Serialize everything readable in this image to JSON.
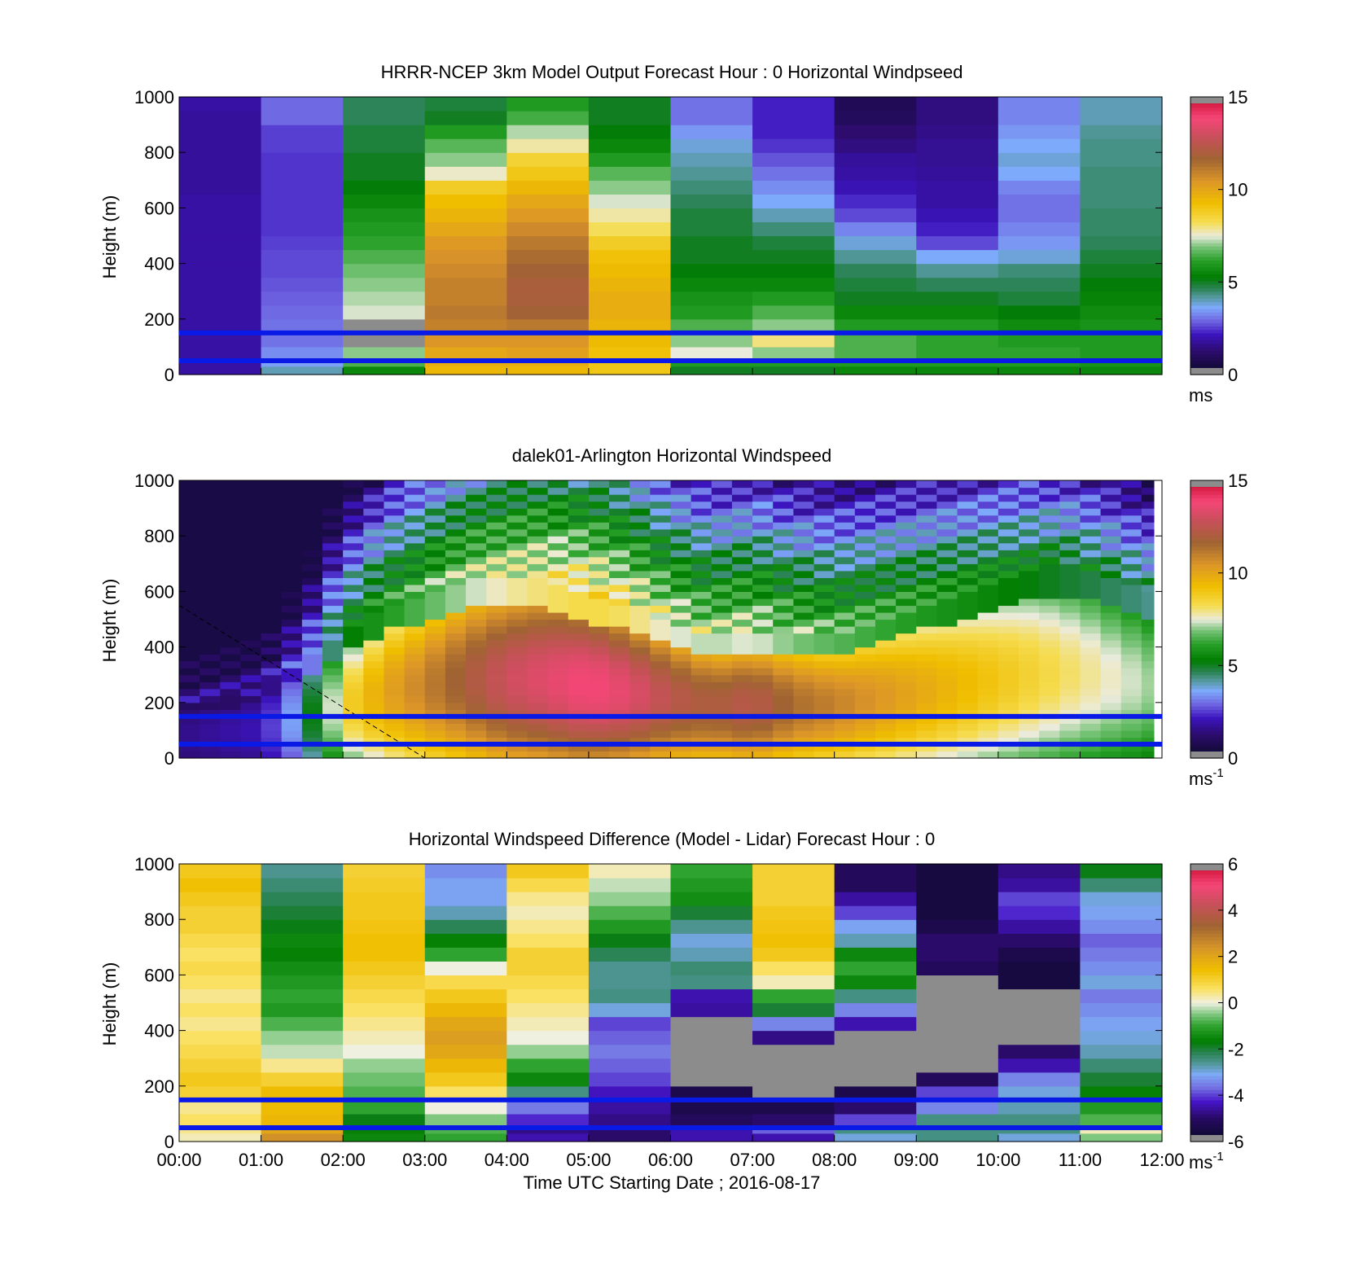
{
  "panels": [
    {
      "title": "HRRR-NCEP 3km Model Output   Forecast Hour : 0 Horizontal Windpseed",
      "ylabel": "Height (m)",
      "yticks": [
        "0",
        "200",
        "400",
        "600",
        "800",
        "1000"
      ],
      "cbar_ticks": [
        "0",
        "5",
        "10",
        "15"
      ],
      "cbar_unit": "ms",
      "cbar_exp": ""
    },
    {
      "title": "dalek01-Arlington  Horizontal Windspeed",
      "ylabel": "Height (m)",
      "yticks": [
        "0",
        "200",
        "400",
        "600",
        "800",
        "1000"
      ],
      "cbar_ticks": [
        "0",
        "5",
        "10",
        "15"
      ],
      "cbar_unit": "ms",
      "cbar_exp": "-1"
    },
    {
      "title": "Horizontal Windspeed Difference (Model - Lidar) Forecast Hour : 0",
      "ylabel": "Height (m)",
      "yticks": [
        "0",
        "200",
        "400",
        "600",
        "800",
        "1000"
      ],
      "cbar_ticks": [
        "-6",
        "-4",
        "-2",
        "0",
        "2",
        "4",
        "6"
      ],
      "cbar_unit": "ms",
      "cbar_exp": "-1"
    }
  ],
  "xlabel": "Time UTC  Starting Date ; 2016-08-17",
  "xticks": [
    "00:00",
    "01:00",
    "02:00",
    "03:00",
    "04:00",
    "05:00",
    "06:00",
    "07:00",
    "08:00",
    "09:00",
    "10:00",
    "11:00",
    "12:00"
  ],
  "colors": {
    "line": "#0a1ae6",
    "nodata": "#8c8c8c"
  },
  "chart_data": [
    {
      "type": "heatmap",
      "title": "HRRR-NCEP 3km Model Output   Forecast Hour : 0 Horizontal Windpseed",
      "xlabel": "",
      "ylabel": "Height (m)",
      "xlim_hours": [
        0,
        12
      ],
      "ylim": [
        0,
        1000
      ],
      "clim": [
        0,
        15
      ],
      "colorbar_label": "ms",
      "x_hours": [
        0,
        1,
        2,
        3,
        4,
        5,
        6,
        7,
        8,
        9,
        10,
        11
      ],
      "heights": [
        30,
        60,
        100,
        150,
        200,
        250,
        300,
        350,
        400,
        450,
        500,
        550,
        600,
        650,
        700,
        750,
        800,
        850,
        900,
        950,
        1000
      ],
      "values": [
        [
          1.8,
          1.8,
          1.8,
          1.8,
          1.8,
          1.8,
          1.8,
          1.8,
          1.8,
          1.8,
          1.8,
          1.8,
          1.8,
          1.8,
          1.7,
          1.7,
          1.7,
          1.7,
          1.7,
          1.7,
          1.8
        ],
        [
          4.0,
          3.5,
          3.3,
          3.0,
          3.0,
          2.9,
          2.8,
          2.7,
          2.6,
          2.6,
          2.5,
          2.4,
          2.4,
          2.4,
          2.4,
          2.4,
          2.4,
          2.5,
          2.5,
          2.9,
          2.9
        ],
        [
          5.5,
          6.5,
          7.0,
          null,
          null,
          7.4,
          7.2,
          7.0,
          6.8,
          6.5,
          6.2,
          6.0,
          5.8,
          5.5,
          5.2,
          5.0,
          5.0,
          4.8,
          4.8,
          4.6,
          4.6
        ],
        [
          9.5,
          9.8,
          10.0,
          10.5,
          11.0,
          11.2,
          11.0,
          11.0,
          10.8,
          10.6,
          10.4,
          10.0,
          9.6,
          9.3,
          8.8,
          7.6,
          7.0,
          6.6,
          6.0,
          5.0,
          4.8
        ],
        [
          9.5,
          9.8,
          10.2,
          10.5,
          11.2,
          11.8,
          12.0,
          12.0,
          11.8,
          11.5,
          11.2,
          10.8,
          10.4,
          10.0,
          9.5,
          9.0,
          8.6,
          7.8,
          7.2,
          6.4,
          6.0
        ],
        [
          9.0,
          9.0,
          9.2,
          9.4,
          9.6,
          9.8,
          9.8,
          9.6,
          9.4,
          9.2,
          8.8,
          8.2,
          7.8,
          7.4,
          7.0,
          6.6,
          6.0,
          5.5,
          5.2,
          5.0,
          5.0
        ],
        [
          5.0,
          6.0,
          7.5,
          7.0,
          6.5,
          6.0,
          5.8,
          5.5,
          5.2,
          5.0,
          5.0,
          4.8,
          4.8,
          4.6,
          4.4,
          4.2,
          4.0,
          3.8,
          3.4,
          3.0,
          3.0
        ],
        [
          5.0,
          6.0,
          7.0,
          8.0,
          7.0,
          6.5,
          6.0,
          5.5,
          5.2,
          5.0,
          4.8,
          4.4,
          4.0,
          3.6,
          3.3,
          3.0,
          2.7,
          2.4,
          2.2,
          2.2,
          2.2
        ],
        [
          5.5,
          6.0,
          6.5,
          6.5,
          6.0,
          5.5,
          5.0,
          4.8,
          4.6,
          4.2,
          3.8,
          3.2,
          2.6,
          2.3,
          2.0,
          1.8,
          1.7,
          1.4,
          1.2,
          0.9,
          0.8
        ],
        [
          5.5,
          6.0,
          6.2,
          6.2,
          6.0,
          5.5,
          5.0,
          4.6,
          4.2,
          3.6,
          2.6,
          2.2,
          2.0,
          1.8,
          1.8,
          1.7,
          1.6,
          1.6,
          1.5,
          1.4,
          1.4
        ],
        [
          5.5,
          6.0,
          6.2,
          6.0,
          5.6,
          5.2,
          4.8,
          4.6,
          4.4,
          3.8,
          3.4,
          3.2,
          3.0,
          3.0,
          3.2,
          3.6,
          3.8,
          3.6,
          3.4,
          3.2,
          3.2
        ],
        [
          5.5,
          5.8,
          6.0,
          6.0,
          5.8,
          5.6,
          5.4,
          5.2,
          5.0,
          4.8,
          4.6,
          4.5,
          4.5,
          4.4,
          4.4,
          4.4,
          4.3,
          4.3,
          4.2,
          4.0,
          4.0
        ]
      ]
    },
    {
      "type": "heatmap",
      "title": "dalek01-Arlington  Horizontal Windspeed",
      "xlabel": "",
      "ylabel": "Height (m)",
      "xlim_hours": [
        0,
        12
      ],
      "ylim": [
        0,
        1000
      ],
      "clim": [
        0,
        15
      ],
      "colorbar_label": "ms-1",
      "x_hours": [
        0.0,
        0.25,
        0.5,
        0.75,
        1.0,
        1.25,
        1.5,
        1.75,
        2.0,
        2.25,
        2.5,
        2.75,
        3.0,
        3.25,
        3.5,
        3.75,
        4.0,
        4.25,
        4.5,
        4.75,
        5.0,
        5.25,
        5.5,
        5.75,
        6.0,
        6.25,
        6.5,
        6.75,
        7.0,
        7.25,
        7.5,
        7.75,
        8.0,
        8.25,
        8.5,
        8.75,
        9.0,
        9.25,
        9.5,
        9.75,
        10.0,
        10.25,
        10.5,
        10.75,
        11.0,
        11.25,
        11.5,
        11.75
      ],
      "heights": [
        25,
        50,
        75,
        100,
        125,
        150,
        175,
        200,
        225,
        250,
        275,
        300,
        325,
        350,
        375,
        400,
        425,
        450,
        475,
        500,
        525,
        550,
        575,
        600,
        625,
        650,
        675,
        700,
        725,
        750,
        775,
        800,
        825,
        850,
        875,
        900,
        925,
        950,
        975,
        1000
      ],
      "profile": {
        "hours": [
          0,
          1,
          1.5,
          2,
          2.5,
          3,
          3.5,
          4,
          4.5,
          5,
          5.5,
          6,
          6.5,
          7,
          7.5,
          8,
          8.5,
          9,
          9.5,
          10,
          10.5,
          11,
          11.5,
          12
        ],
        "low_level_max": [
          1.5,
          2.0,
          4.0,
          8.5,
          10.0,
          11.0,
          12.0,
          13.0,
          13.5,
          14.0,
          13.5,
          12.5,
          12.0,
          12.5,
          11.5,
          11.0,
          10.5,
          10.0,
          9.5,
          9.0,
          8.5,
          8.0,
          7.5,
          7.0
        ],
        "jet_top_height": [
          200,
          250,
          350,
          450,
          550,
          600,
          650,
          650,
          650,
          600,
          550,
          500,
          450,
          450,
          450,
          450,
          500,
          550,
          600,
          650,
          700,
          700,
          650,
          600
        ]
      }
    },
    {
      "type": "heatmap",
      "title": "Horizontal Windspeed Difference (Model - Lidar) Forecast Hour : 0",
      "xlabel": "Time UTC  Starting Date ; 2016-08-17",
      "ylabel": "Height (m)",
      "xlim_hours": [
        0,
        12
      ],
      "ylim": [
        0,
        1000
      ],
      "clim": [
        -6,
        6
      ],
      "colorbar_label": "ms-1",
      "x_hours": [
        0,
        1,
        2,
        3,
        4,
        5,
        6,
        7,
        8,
        9,
        10,
        11
      ],
      "heights": [
        30,
        60,
        100,
        150,
        200,
        250,
        300,
        350,
        400,
        450,
        500,
        550,
        600,
        650,
        700,
        750,
        800,
        850,
        900,
        950,
        1000
      ],
      "values": [
        [
          0.2,
          0.4,
          0.6,
          0.4,
          1.0,
          1.2,
          1.0,
          0.8,
          0.6,
          0.4,
          0.6,
          0.4,
          0.6,
          0.8,
          0.6,
          0.8,
          1.0,
          1.0,
          1.2,
          1.4,
          1.2
        ],
        [
          2.5,
          2.0,
          1.6,
          1.5,
          1.5,
          1.0,
          0.4,
          -0.2,
          -0.4,
          -0.8,
          -1.2,
          -1.0,
          -1.2,
          -1.4,
          -1.6,
          -1.5,
          -1.8,
          -2.0,
          -2.2,
          -2.4,
          -2.6
        ],
        [
          -1.5,
          -1.6,
          -1.8,
          -1.0,
          -0.8,
          -0.6,
          -0.4,
          0.0,
          0.2,
          0.4,
          0.6,
          0.8,
          1.0,
          1.2,
          1.4,
          1.4,
          1.3,
          1.2,
          1.2,
          1.1,
          1.0
        ],
        [
          -1.0,
          -0.8,
          -0.5,
          0.0,
          0.6,
          1.2,
          1.6,
          2.0,
          2.2,
          2.0,
          1.6,
          1.2,
          0.8,
          0.0,
          -1.0,
          -1.6,
          -2.2,
          -2.8,
          -3.2,
          -3.2,
          -3.4
        ],
        [
          -4.5,
          -4.8,
          -4.2,
          -3.6,
          -2.5,
          -1.5,
          -1.0,
          -0.4,
          0.0,
          0.2,
          0.4,
          0.6,
          0.8,
          1.0,
          1.0,
          0.6,
          0.4,
          0.2,
          0.4,
          0.8,
          1.2
        ],
        [
          -5.0,
          -5.0,
          -4.8,
          -4.6,
          -4.4,
          -4.0,
          -3.8,
          -3.6,
          -3.8,
          -4.0,
          -3.0,
          -2.5,
          -2.6,
          -2.6,
          -2.2,
          -1.8,
          -1.2,
          -0.8,
          -0.4,
          -0.2,
          0.2
        ],
        [
          -4.5,
          -4.5,
          -5.2,
          -5.4,
          -5.4,
          null,
          null,
          null,
          null,
          null,
          -4.6,
          -4.5,
          -2.5,
          -2.4,
          -2.8,
          -3.0,
          -2.6,
          -2.0,
          -1.4,
          -1.2,
          -1.0
        ],
        [
          -4.5,
          -3.8,
          -5.0,
          -5.4,
          null,
          null,
          null,
          null,
          -4.8,
          -3.5,
          -2.0,
          -1.0,
          0.2,
          0.6,
          1.2,
          1.4,
          1.3,
          1.2,
          1.0,
          1.0,
          1.0
        ],
        [
          -3.0,
          -2.5,
          -4.0,
          -5.0,
          -5.4,
          null,
          null,
          null,
          null,
          -4.5,
          -3.5,
          -2.5,
          -1.5,
          -1.0,
          -1.5,
          -2.8,
          -3.2,
          -4.0,
          -4.6,
          -5.2,
          -5.2
        ],
        [
          -2.5,
          -2.5,
          -2.5,
          -3.5,
          -4.0,
          -5.2,
          null,
          null,
          null,
          null,
          null,
          null,
          null,
          -5.2,
          -5.0,
          -5.0,
          -5.4,
          -5.6,
          -5.6,
          -5.6,
          -5.6
        ],
        [
          -3.0,
          -2.5,
          -2.5,
          -2.8,
          -3.0,
          -3.5,
          -4.5,
          -5.0,
          null,
          null,
          null,
          null,
          -5.6,
          -5.6,
          -5.4,
          -5.0,
          -4.6,
          -4.2,
          -4.0,
          -4.6,
          -4.8
        ],
        [
          -0.5,
          0.2,
          -0.8,
          -1.2,
          -1.6,
          -2.0,
          -2.4,
          -2.8,
          -3.0,
          -3.2,
          -3.4,
          -3.6,
          -3.0,
          -3.4,
          -3.6,
          -3.8,
          -3.4,
          -3.2,
          -3.0,
          -2.4,
          -1.8
        ]
      ]
    }
  ]
}
